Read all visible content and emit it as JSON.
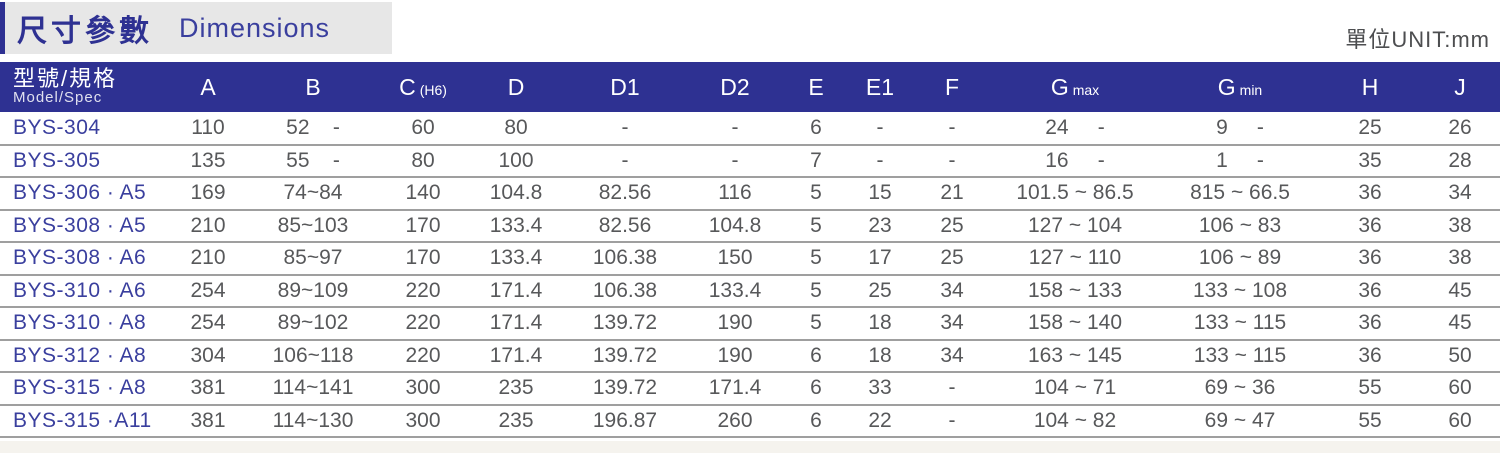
{
  "header": {
    "title_zh": "尺寸參數",
    "title_en": "Dimensions",
    "unit_label": "單位UNIT:mm"
  },
  "table": {
    "model_header": {
      "zh": "型號/規格",
      "en": "Model/Spec"
    },
    "columns": [
      {
        "main": "A",
        "sub": ""
      },
      {
        "main": "B",
        "sub": ""
      },
      {
        "main": "C",
        "sub": "(H6)"
      },
      {
        "main": "D",
        "sub": ""
      },
      {
        "main": "D1",
        "sub": ""
      },
      {
        "main": "D2",
        "sub": ""
      },
      {
        "main": "E",
        "sub": ""
      },
      {
        "main": "E1",
        "sub": ""
      },
      {
        "main": "F",
        "sub": ""
      },
      {
        "main": "G",
        "sub": "max"
      },
      {
        "main": "G",
        "sub": "min"
      },
      {
        "main": "H",
        "sub": ""
      },
      {
        "main": "J",
        "sub": ""
      }
    ],
    "rows": [
      {
        "model": "BYS-304",
        "values": [
          "110",
          "52    -",
          "60",
          "80",
          "-",
          "-",
          "6",
          "-",
          "-",
          "24     -",
          "9     -",
          "25",
          "26"
        ]
      },
      {
        "model": "BYS-305",
        "values": [
          "135",
          "55    -",
          "80",
          "100",
          "-",
          "-",
          "7",
          "-",
          "-",
          "16     -",
          "1     -",
          "35",
          "28"
        ]
      },
      {
        "model": "BYS-306 · A5",
        "values": [
          "169",
          "74~84",
          "140",
          "104.8",
          "82.56",
          "116",
          "5",
          "15",
          "21",
          "101.5 ~ 86.5",
          "815 ~ 66.5",
          "36",
          "34"
        ]
      },
      {
        "model": "BYS-308 · A5",
        "values": [
          "210",
          "85~103",
          "170",
          "133.4",
          "82.56",
          "104.8",
          "5",
          "23",
          "25",
          "127 ~ 104",
          "106 ~ 83",
          "36",
          "38"
        ]
      },
      {
        "model": "BYS-308 · A6",
        "values": [
          "210",
          "85~97",
          "170",
          "133.4",
          "106.38",
          "150",
          "5",
          "17",
          "25",
          "127 ~ 110",
          "106 ~ 89",
          "36",
          "38"
        ]
      },
      {
        "model": "BYS-310 · A6",
        "values": [
          "254",
          "89~109",
          "220",
          "171.4",
          "106.38",
          "133.4",
          "5",
          "25",
          "34",
          "158 ~ 133",
          "133 ~ 108",
          "36",
          "45"
        ]
      },
      {
        "model": "BYS-310 · A8",
        "values": [
          "254",
          "89~102",
          "220",
          "171.4",
          "139.72",
          "190",
          "5",
          "18",
          "34",
          "158 ~ 140",
          "133 ~ 115",
          "36",
          "45"
        ]
      },
      {
        "model": "BYS-312 · A8",
        "values": [
          "304",
          "106~118",
          "220",
          "171.4",
          "139.72",
          "190",
          "6",
          "18",
          "34",
          "163 ~ 145",
          "133 ~ 115",
          "36",
          "50"
        ]
      },
      {
        "model": "BYS-315 · A8",
        "values": [
          "381",
          "114~141",
          "300",
          "235",
          "139.72",
          "171.4",
          "6",
          "33",
          "-",
          "104 ~ 71",
          "69 ~ 36",
          "55",
          "60"
        ]
      },
      {
        "model": "BYS-315 ·A11",
        "values": [
          "381",
          "114~130",
          "300",
          "235",
          "196.87",
          "260",
          "6",
          "22",
          "-",
          "104 ~ 82",
          "69 ~ 47",
          "55",
          "60"
        ]
      }
    ]
  },
  "colors": {
    "header_bg": "#2e3192",
    "title_text": "#2e3192",
    "model_text": "#3a3f9e",
    "data_text": "#57585a",
    "row_line": "#9f9f9f",
    "title_bg": "#e7e7e7",
    "footer_bg": "#f5f3ee",
    "unit_text": "#4d4e50"
  }
}
